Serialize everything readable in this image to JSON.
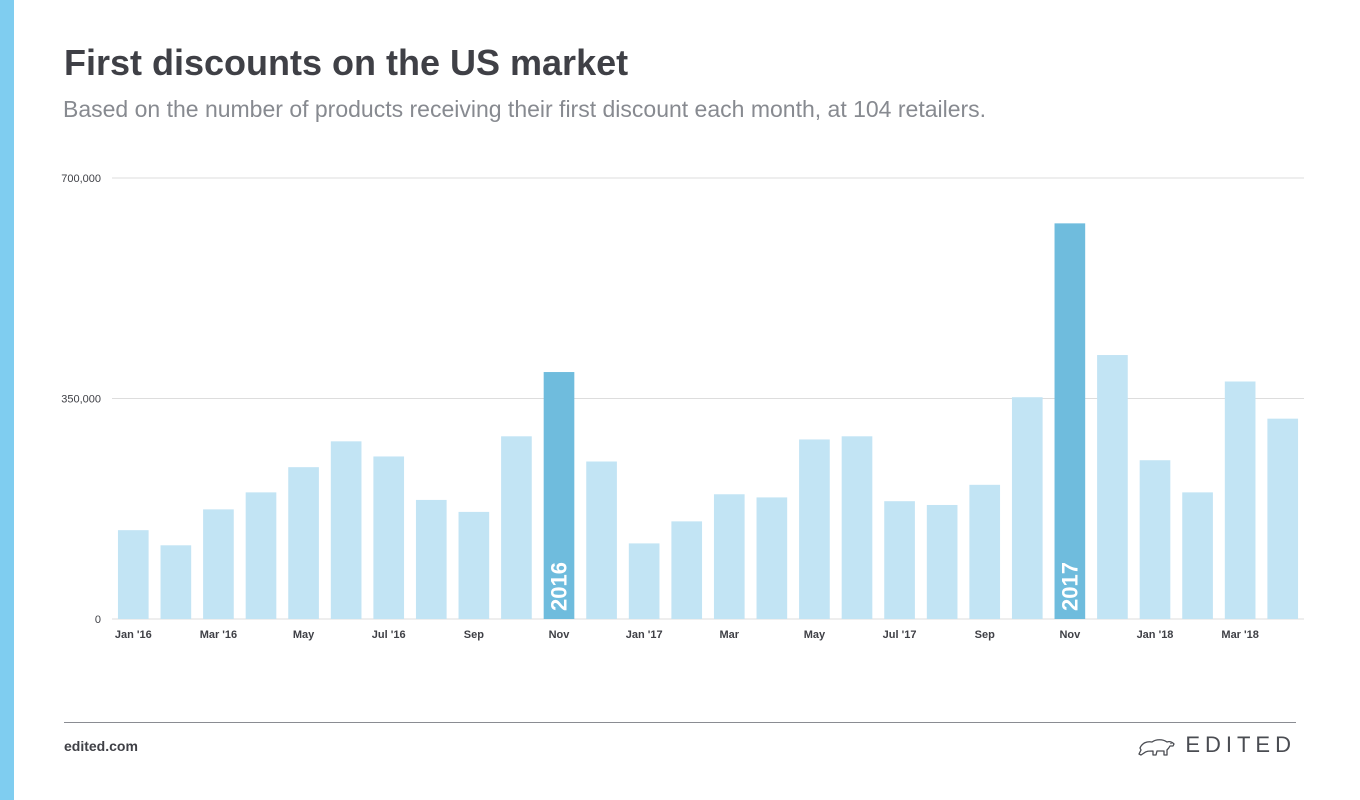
{
  "header": {
    "title": "First discounts on the US market",
    "subtitle": "Based on the number of products receiving their first discount each month, at 104 retailers."
  },
  "footer": {
    "url": "edited.com",
    "brand": "EDITED"
  },
  "colors": {
    "accent_bar": "#7fcdf0",
    "bar": "#c2e4f4",
    "bar_highlight": "#6fbcdd",
    "grid": "#dddddd"
  },
  "chart_data": {
    "type": "bar",
    "title": "First discounts on the US market",
    "subtitle": "Based on the number of products receiving their first discount each month, at 104 retailers.",
    "categories": [
      "Jan '16",
      "Feb '16",
      "Mar '16",
      "Apr '16",
      "May '16",
      "Jun '16",
      "Jul '16",
      "Aug '16",
      "Sep '16",
      "Oct '16",
      "Nov '16",
      "Dec '16",
      "Jan '17",
      "Feb '17",
      "Mar '17",
      "Apr '17",
      "May '17",
      "Jun '17",
      "Jul '17",
      "Aug '17",
      "Sep '17",
      "Oct '17",
      "Nov '17",
      "Dec '17",
      "Jan '18",
      "Feb '18",
      "Mar '18",
      "Apr '18"
    ],
    "tick_labels": [
      "Jan '16",
      "",
      "Mar '16",
      "",
      "May",
      "",
      "Jul '16",
      "",
      "Sep",
      "",
      "Nov",
      "",
      "Jan '17",
      "",
      "Mar",
      "",
      "May",
      "",
      "Jul '17",
      "",
      "Sep",
      "",
      "Nov",
      "",
      "Jan '18",
      "",
      "Mar '18",
      ""
    ],
    "values": [
      141000,
      117000,
      174000,
      201000,
      241000,
      282000,
      258000,
      189000,
      170000,
      290000,
      392000,
      250000,
      120000,
      155000,
      198000,
      193000,
      285000,
      290000,
      187000,
      181000,
      213000,
      352000,
      628000,
      419000,
      252000,
      201000,
      377000,
      318000
    ],
    "highlight_labels": {
      "10": "2016",
      "22": "2017"
    },
    "y_ticks": [
      0,
      350000,
      700000
    ],
    "y_tick_labels": [
      "0",
      "350,000",
      "700,000"
    ],
    "ylim": [
      0,
      700000
    ],
    "xlabel": "",
    "ylabel": "",
    "grid": true,
    "legend": "none"
  }
}
